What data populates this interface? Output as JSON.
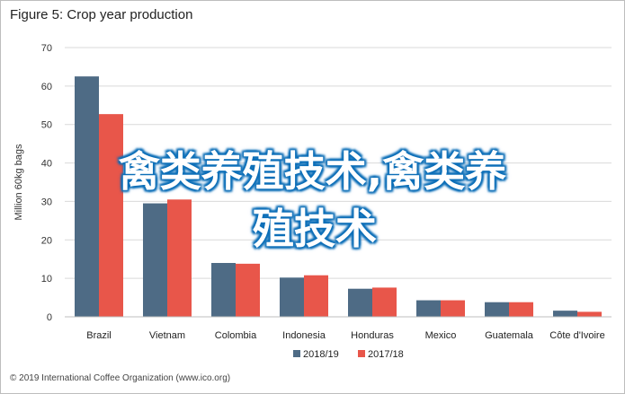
{
  "figure_title": "Figure 5: Crop year production",
  "footer": "© 2019 International Coffee Organization (www.ico.org)",
  "overlay_line1": "禽类养殖技术,禽类养",
  "overlay_line2": "殖技术",
  "colors": {
    "series1": "#4e6b85",
    "series2": "#e8564a",
    "grid": "#d9d9d9"
  },
  "chart_data": {
    "type": "bar",
    "title": "",
    "xlabel": "",
    "ylabel": "Million 60kg bags",
    "ylim": [
      0,
      70
    ],
    "yticks": [
      0,
      10,
      20,
      30,
      40,
      50,
      60,
      70
    ],
    "grid": true,
    "legend_position": "bottom",
    "categories": [
      "Brazil",
      "Vietnam",
      "Colombia",
      "Indonesia",
      "Honduras",
      "Mexico",
      "Guatemala",
      "Côte d'Ivoire"
    ],
    "series": [
      {
        "name": "2018/19",
        "color": "#4e6b85",
        "values": [
          62.5,
          29.5,
          14,
          10.2,
          7.3,
          4.3,
          3.8,
          1.6
        ]
      },
      {
        "name": "2017/18",
        "color": "#e8564a",
        "values": [
          52.7,
          30.5,
          13.8,
          10.8,
          7.6,
          4.3,
          3.8,
          1.3
        ]
      }
    ]
  }
}
